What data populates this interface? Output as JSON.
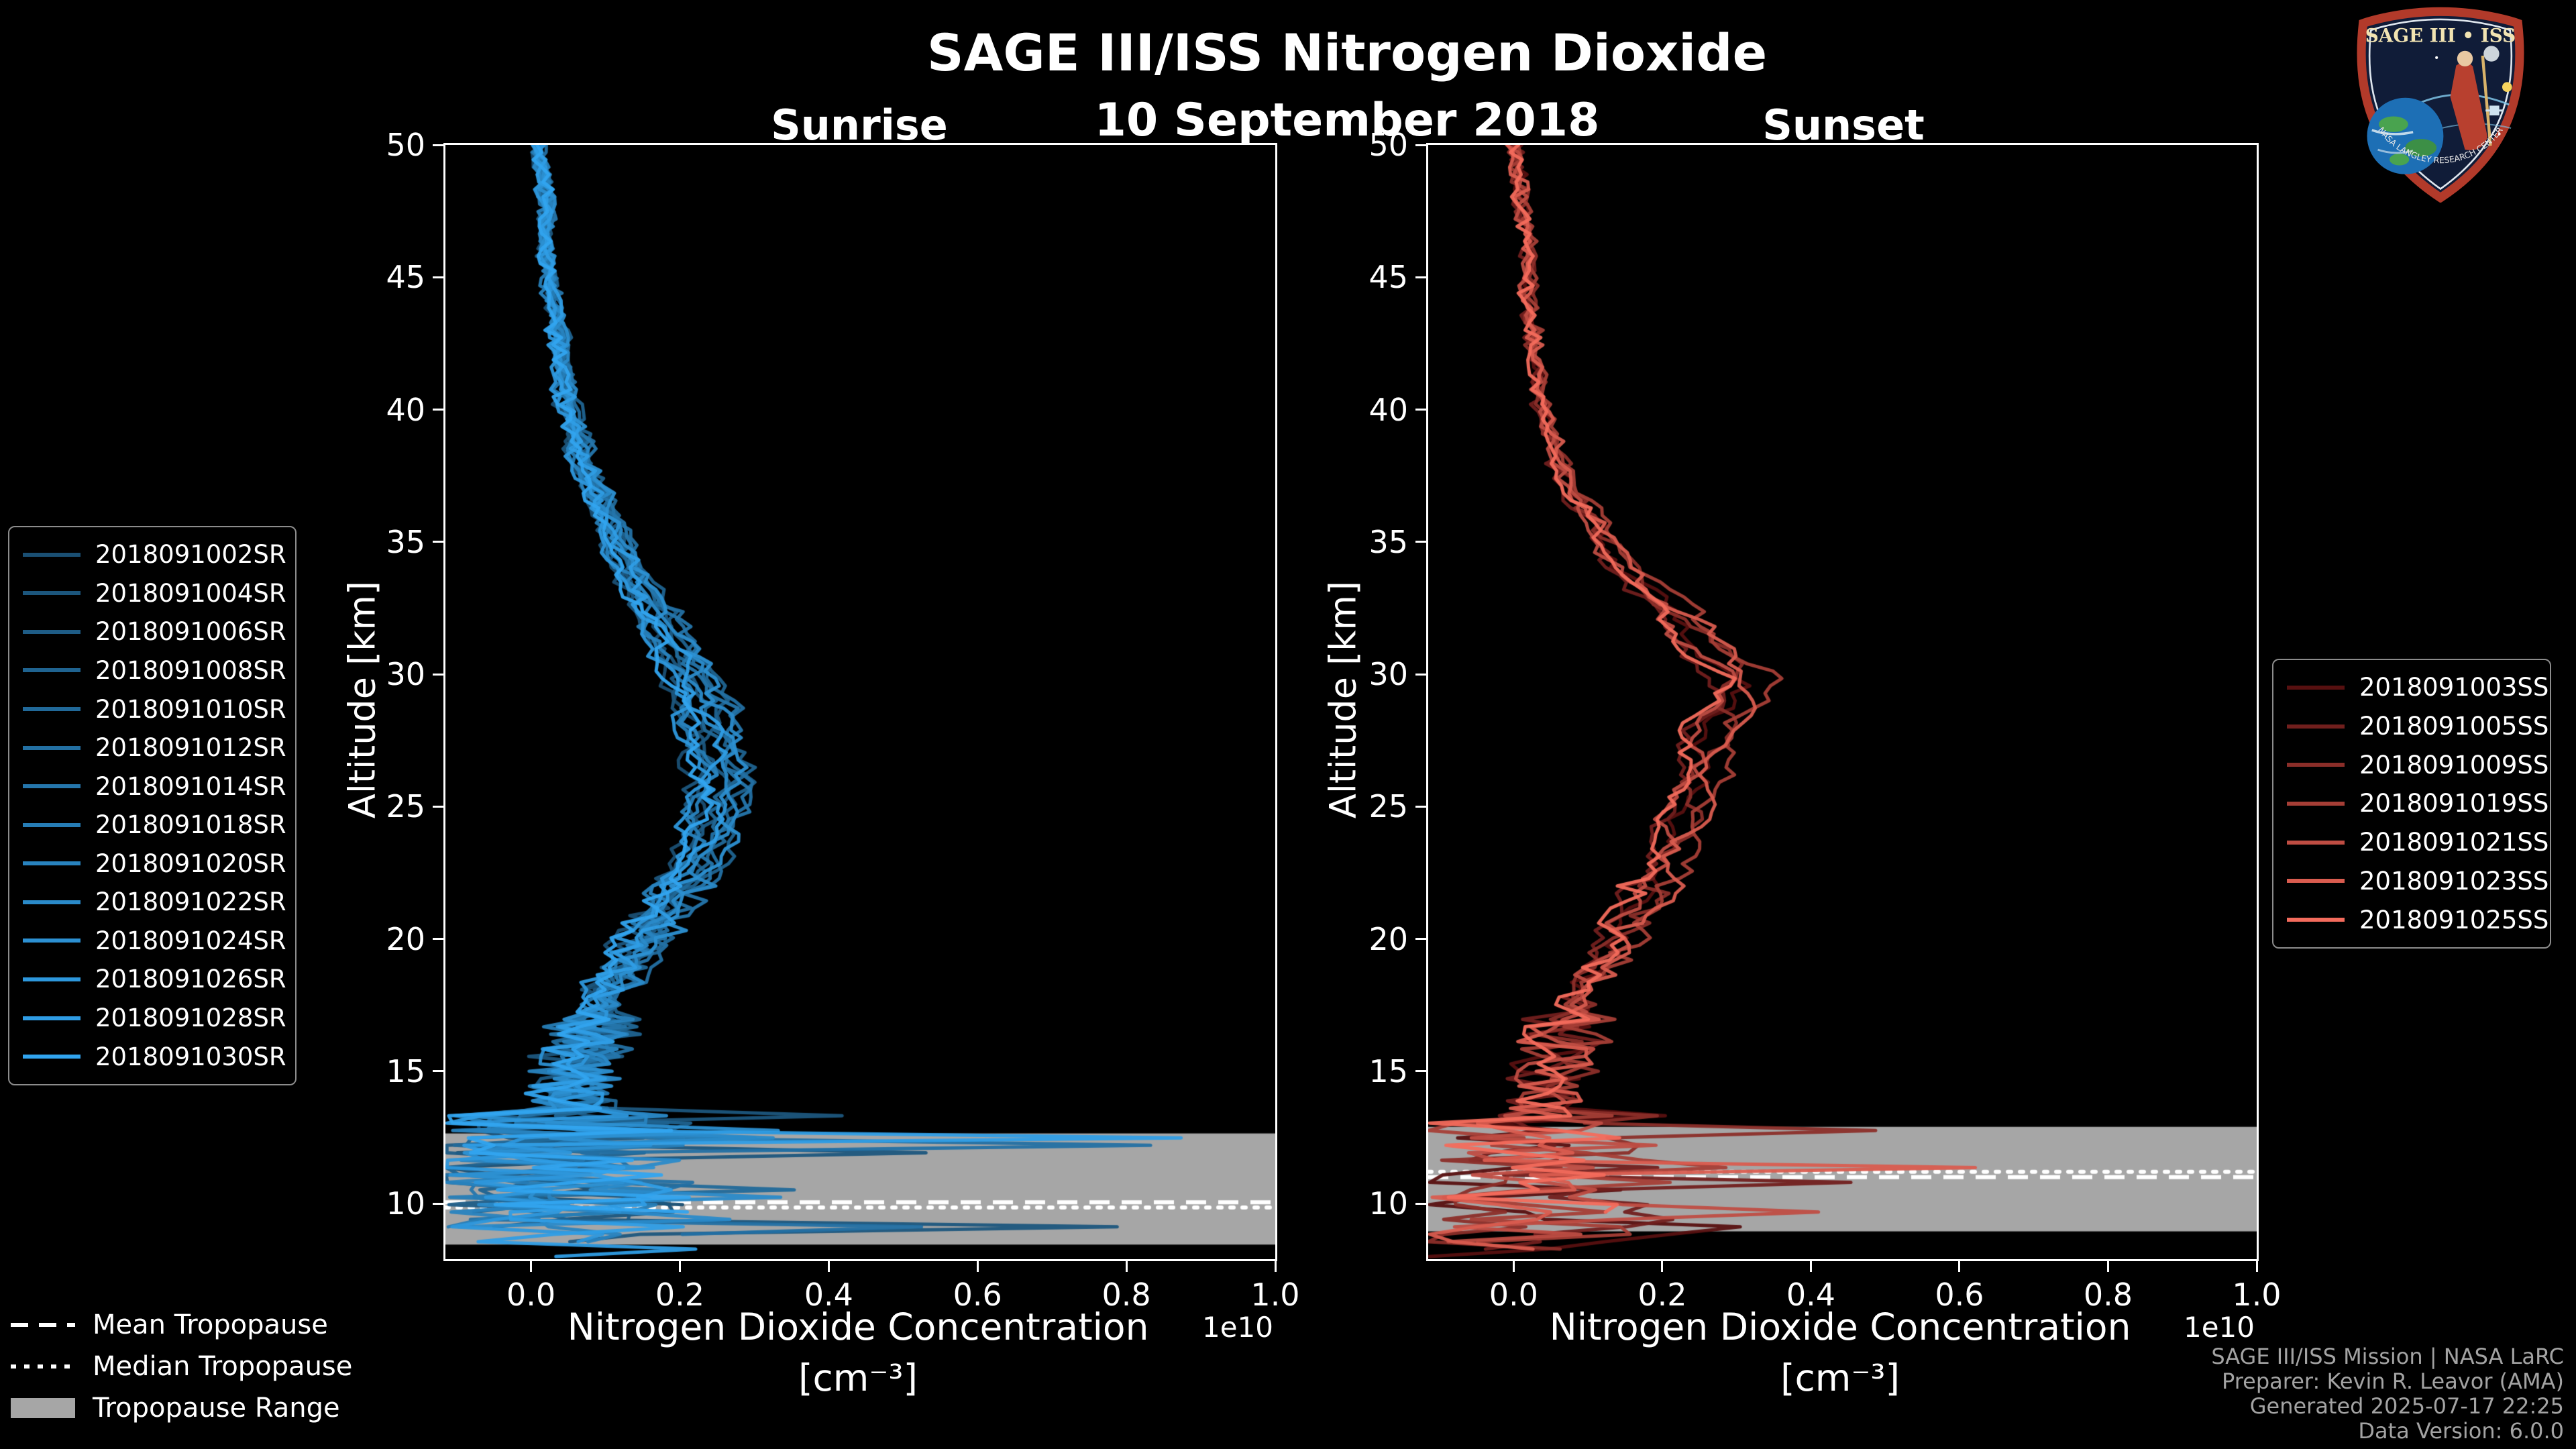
{
  "title": "SAGE III/ISS Nitrogen Dioxide",
  "date": "10 September 2018",
  "logo": {
    "title": "SAGE III • ISS",
    "ring_text": "NASA LANGLEY RESEARCH CENTER"
  },
  "axis": {
    "ylabel": "Altitude [km]",
    "xlabel_line1": "Nitrogen Dioxide Concentration",
    "xlabel_line2": "[cm⁻³]",
    "offset_label": "1e10"
  },
  "tropopause_legend": {
    "mean": "Mean Tropopause",
    "median": "Median Tropopause",
    "range": "Tropopause Range",
    "band_color": "#a6a6a6",
    "line_color": "#ffffff"
  },
  "credits": [
    "SAGE III/ISS Mission | NASA LaRC",
    "Preparer: Kevin R. Leavor (AMA)",
    "Generated 2025-07-17 22:25",
    "Data Version: 6.0.0"
  ],
  "chart_data": [
    {
      "type": "line",
      "title": "Sunrise",
      "xlabel": "Nitrogen Dioxide Concentration [cm⁻³]",
      "ylabel": "Altitude [km]",
      "x_offset_factor": "1e10",
      "xlim": [
        -0.115,
        1.0
      ],
      "ylim": [
        7.9,
        50
      ],
      "xticks": [
        "0.0",
        "0.2",
        "0.4",
        "0.6",
        "0.8",
        "1.0"
      ],
      "yticks": [
        10,
        15,
        20,
        25,
        30,
        35,
        40,
        45,
        50
      ],
      "grid": false,
      "legend_position": "outside-left",
      "series": [
        {
          "name": "2018091002SR",
          "color": "#1a4f73"
        },
        {
          "name": "2018091004SR",
          "color": "#1c567d"
        },
        {
          "name": "2018091006SR",
          "color": "#1e5c86"
        },
        {
          "name": "2018091008SR",
          "color": "#1f6390"
        },
        {
          "name": "2018091010SR",
          "color": "#216999"
        },
        {
          "name": "2018091012SR",
          "color": "#2370a3"
        },
        {
          "name": "2018091014SR",
          "color": "#2576ac"
        },
        {
          "name": "2018091018SR",
          "color": "#267db6"
        },
        {
          "name": "2018091020SR",
          "color": "#2883bf"
        },
        {
          "name": "2018091022SR",
          "color": "#2a8ac9"
        },
        {
          "name": "2018091024SR",
          "color": "#2c90d2"
        },
        {
          "name": "2018091026SR",
          "color": "#2d97dc"
        },
        {
          "name": "2018091028SR",
          "color": "#2f9de5"
        },
        {
          "name": "2018091030SR",
          "color": "#31a4ef"
        }
      ],
      "mean_profile": {
        "altitude_km": [
          8,
          10,
          12,
          14,
          16,
          18,
          20,
          22,
          24,
          26,
          28,
          30,
          32,
          34,
          36,
          38,
          40,
          42,
          44,
          46,
          48,
          50
        ],
        "no2_1e10": [
          0.05,
          0.05,
          0.04,
          0.05,
          0.07,
          0.1,
          0.15,
          0.2,
          0.24,
          0.25,
          0.24,
          0.21,
          0.17,
          0.13,
          0.1,
          0.07,
          0.05,
          0.04,
          0.03,
          0.02,
          0.02,
          0.01
        ]
      },
      "tropopause": {
        "mean_km": 10.05,
        "median_km": 9.85,
        "range_km": [
          8.45,
          12.65
        ]
      }
    },
    {
      "type": "line",
      "title": "Sunset",
      "xlabel": "Nitrogen Dioxide Concentration [cm⁻³]",
      "ylabel": "Altitude [km]",
      "x_offset_factor": "1e10",
      "xlim": [
        -0.115,
        1.0
      ],
      "ylim": [
        7.9,
        50
      ],
      "xticks": [
        "0.0",
        "0.2",
        "0.4",
        "0.6",
        "0.8",
        "1.0"
      ],
      "yticks": [
        10,
        15,
        20,
        25,
        30,
        35,
        40,
        45,
        50
      ],
      "grid": false,
      "legend_position": "outside-right",
      "series": [
        {
          "name": "2018091003SS",
          "color": "#571010"
        },
        {
          "name": "2018091005SS",
          "color": "#711f1d"
        },
        {
          "name": "2018091009SS",
          "color": "#8b2e29"
        },
        {
          "name": "2018091019SS",
          "color": "#a53e36"
        },
        {
          "name": "2018091021SS",
          "color": "#bf4d43"
        },
        {
          "name": "2018091023SS",
          "color": "#d95c4f"
        },
        {
          "name": "2018091025SS",
          "color": "#f36b5c"
        }
      ],
      "mean_profile": {
        "altitude_km": [
          8,
          10,
          12,
          14,
          16,
          18,
          20,
          22,
          24,
          26,
          28,
          30,
          32,
          34,
          36,
          38,
          40,
          42,
          44,
          46,
          48,
          50
        ],
        "no2_1e10": [
          0.04,
          0.04,
          0.04,
          0.05,
          0.06,
          0.09,
          0.14,
          0.18,
          0.22,
          0.24,
          0.27,
          0.3,
          0.22,
          0.15,
          0.1,
          0.06,
          0.04,
          0.03,
          0.02,
          0.02,
          0.01,
          0.0
        ]
      },
      "tropopause": {
        "mean_km": 11.0,
        "median_km": 11.2,
        "range_km": [
          8.95,
          12.9
        ]
      }
    }
  ]
}
